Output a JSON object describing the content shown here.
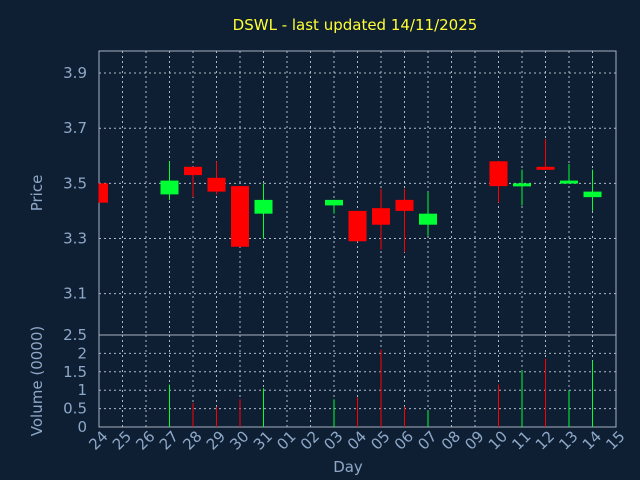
{
  "chart_data": {
    "title": "DSWL - last updated 14/11/2025",
    "xlabel": "Day",
    "colors": {
      "background": "#0f1f33",
      "title": "#ffff33",
      "axis_text": "#8ea8c8",
      "up": "#00ff33",
      "down": "#ff0000",
      "grid": "#c9d3df"
    },
    "categories": [
      "24",
      "25",
      "26",
      "27",
      "28",
      "29",
      "30",
      "31",
      "01",
      "02",
      "03",
      "04",
      "05",
      "06",
      "07",
      "08",
      "09",
      "10",
      "11",
      "12",
      "13",
      "14",
      "15"
    ],
    "price_panel": {
      "type": "candlestick",
      "ylabel": "Price",
      "ylim": [
        2.95,
        3.98
      ],
      "yticks": [
        "3.1",
        "3.3",
        "3.5",
        "3.7",
        "3.9"
      ],
      "candles": [
        {
          "x": "24",
          "open": 3.5,
          "high": 3.5,
          "low": 3.43,
          "close": 3.43
        },
        {
          "x": "27",
          "open": 3.46,
          "high": 3.58,
          "low": 3.44,
          "close": 3.51
        },
        {
          "x": "28",
          "open": 3.56,
          "high": 3.56,
          "low": 3.45,
          "close": 3.53
        },
        {
          "x": "29",
          "open": 3.52,
          "high": 3.58,
          "low": 3.46,
          "close": 3.47
        },
        {
          "x": "30",
          "open": 3.49,
          "high": 3.49,
          "low": 3.27,
          "close": 3.27
        },
        {
          "x": "31",
          "open": 3.39,
          "high": 3.5,
          "low": 3.3,
          "close": 3.44
        },
        {
          "x": "03",
          "open": 3.42,
          "high": 3.44,
          "low": 3.39,
          "close": 3.44
        },
        {
          "x": "04",
          "open": 3.4,
          "high": 3.4,
          "low": 3.29,
          "close": 3.29
        },
        {
          "x": "05",
          "open": 3.41,
          "high": 3.48,
          "low": 3.26,
          "close": 3.35
        },
        {
          "x": "06",
          "open": 3.44,
          "high": 3.48,
          "low": 3.25,
          "close": 3.4
        },
        {
          "x": "07",
          "open": 3.35,
          "high": 3.47,
          "low": 3.31,
          "close": 3.39
        },
        {
          "x": "10",
          "open": 3.58,
          "high": 3.58,
          "low": 3.43,
          "close": 3.49
        },
        {
          "x": "11",
          "open": 3.49,
          "high": 3.55,
          "low": 3.42,
          "close": 3.5
        },
        {
          "x": "12",
          "open": 3.56,
          "high": 3.66,
          "low": 3.55,
          "close": 3.55
        },
        {
          "x": "13",
          "open": 3.5,
          "high": 3.57,
          "low": 3.5,
          "close": 3.51
        },
        {
          "x": "14",
          "open": 3.45,
          "high": 3.55,
          "low": 3.4,
          "close": 3.47
        }
      ]
    },
    "volume_panel": {
      "type": "bar",
      "ylabel": "Volume (0000)",
      "ylim": [
        0,
        2.5
      ],
      "yticks": [
        "0",
        "0.5",
        "1",
        "1.5",
        "2",
        "2.5"
      ],
      "bars": [
        {
          "x": "27",
          "value": 1.15,
          "direction": "up"
        },
        {
          "x": "28",
          "value": 0.65,
          "direction": "down"
        },
        {
          "x": "29",
          "value": 0.55,
          "direction": "down"
        },
        {
          "x": "30",
          "value": 0.75,
          "direction": "down"
        },
        {
          "x": "31",
          "value": 1.05,
          "direction": "up"
        },
        {
          "x": "03",
          "value": 0.75,
          "direction": "up"
        },
        {
          "x": "04",
          "value": 0.8,
          "direction": "down"
        },
        {
          "x": "05",
          "value": 2.1,
          "direction": "down"
        },
        {
          "x": "06",
          "value": 0.55,
          "direction": "down"
        },
        {
          "x": "07",
          "value": 0.45,
          "direction": "up"
        },
        {
          "x": "10",
          "value": 1.15,
          "direction": "down"
        },
        {
          "x": "11",
          "value": 1.55,
          "direction": "up"
        },
        {
          "x": "12",
          "value": 1.85,
          "direction": "down"
        },
        {
          "x": "13",
          "value": 1.0,
          "direction": "up"
        },
        {
          "x": "14",
          "value": 1.8,
          "direction": "up"
        }
      ]
    }
  }
}
